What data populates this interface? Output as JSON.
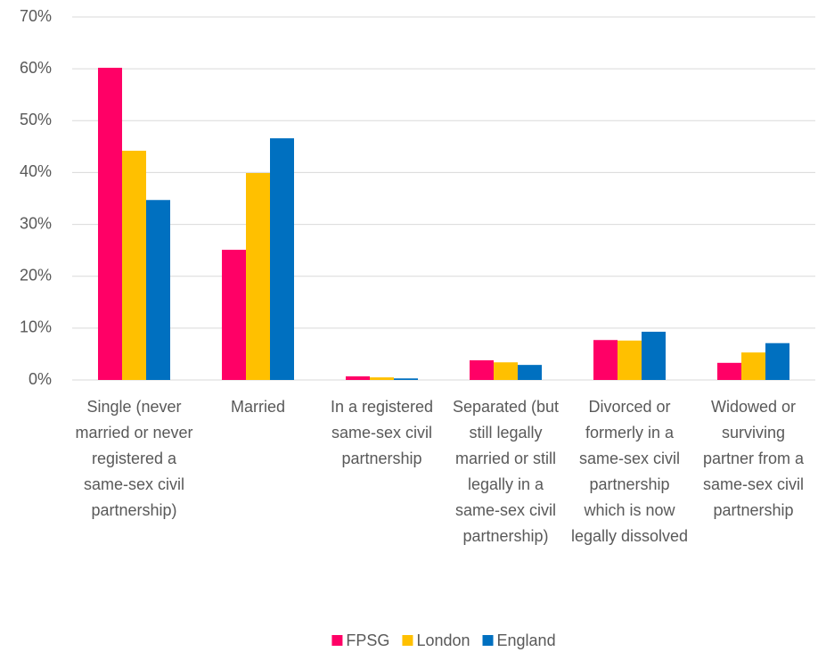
{
  "chart_data": {
    "type": "bar",
    "categories": [
      "Single (never married or never registered a same-sex civil partnership)",
      "Married",
      "In a registered same-sex civil partnership",
      "Separated (but still legally married or still legally in a same-sex civil partnership)",
      "Divorced or formerly in a same-sex civil partnership which is now legally dissolved",
      "Widowed or surviving partner from a same-sex civil partnership"
    ],
    "series": [
      {
        "name": "FPSG",
        "color": "#ff0066",
        "values": [
          60.2,
          25.1,
          0.7,
          3.8,
          7.7,
          3.3
        ]
      },
      {
        "name": "London",
        "color": "#ffc000",
        "values": [
          44.2,
          39.9,
          0.5,
          3.4,
          7.6,
          5.3
        ]
      },
      {
        "name": "England",
        "color": "#0070c0",
        "values": [
          34.7,
          46.6,
          0.3,
          2.9,
          9.3,
          7.1
        ]
      }
    ],
    "ylim": [
      0,
      70
    ],
    "yticks": [
      {
        "value": 0,
        "label": "0%"
      },
      {
        "value": 10,
        "label": "10%"
      },
      {
        "value": 20,
        "label": "20%"
      },
      {
        "value": 30,
        "label": "30%"
      },
      {
        "value": 40,
        "label": "40%"
      },
      {
        "value": 50,
        "label": "50%"
      },
      {
        "value": 60,
        "label": "60%"
      },
      {
        "value": 70,
        "label": "70%"
      }
    ],
    "grid": true,
    "legend": "bottom"
  }
}
